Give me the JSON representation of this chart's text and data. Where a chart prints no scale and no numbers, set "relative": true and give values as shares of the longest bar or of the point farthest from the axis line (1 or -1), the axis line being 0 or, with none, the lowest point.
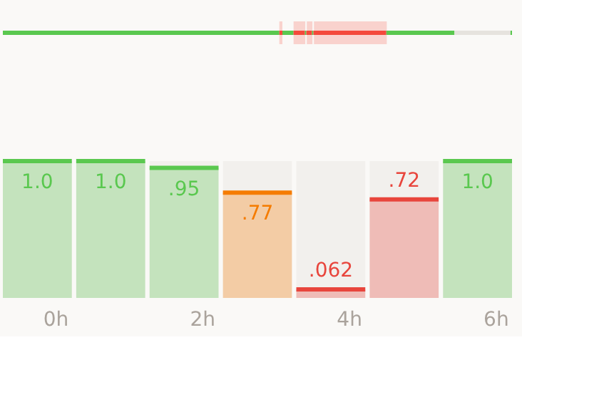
{
  "chart_data": [
    {
      "type": "bar",
      "orientation": "horizontal",
      "stacked": true,
      "relative": true,
      "categories": [
        null
      ],
      "series": [
        {
          "color": "#5ac84f",
          "values": [
            0.543
          ]
        },
        {
          "color": "#f44a3c",
          "values": [
            0.006
          ]
        },
        {
          "color": "#5ac84f",
          "values": [
            0.022
          ]
        },
        {
          "color": "#f44a3c",
          "values": [
            0.022
          ]
        },
        {
          "color": "#5ac84f",
          "values": [
            0.003
          ]
        },
        {
          "color": "#f44a3c",
          "values": [
            0.011
          ]
        },
        {
          "color": "#5ac84f",
          "values": [
            0.003
          ]
        },
        {
          "color": "#f44a3c",
          "values": [
            0.143
          ]
        },
        {
          "color": "#5ac84f",
          "values": [
            0.134
          ]
        },
        {
          "color": "#e6e3de",
          "values": [
            0.11
          ]
        },
        {
          "color": "#5ac84f",
          "values": [
            0.003
          ]
        }
      ],
      "bands": [
        {
          "axis": "x",
          "from": 0.543,
          "to": 0.549,
          "color": "#f44a3c"
        },
        {
          "axis": "x",
          "from": 0.571,
          "to": 0.594,
          "color": "#f44a3c"
        },
        {
          "axis": "x",
          "from": 0.597,
          "to": 0.608,
          "color": "#f44a3c"
        },
        {
          "axis": "x",
          "from": 0.611,
          "to": 0.754,
          "color": "#f44a3c"
        }
      ]
    },
    {
      "type": "bar",
      "categories": [
        "0h",
        null,
        "2h",
        null,
        "4h",
        null,
        "6h"
      ],
      "values": [
        1.0,
        1.0,
        0.95,
        0.77,
        0.062,
        0.72,
        1.0
      ],
      "colors": [
        "#5ac84f",
        "#5ac84f",
        "#5ac84f",
        "#f57c00",
        "#e8453c",
        "#e8453c",
        "#5ac84f"
      ],
      "value_labels": [
        "1.0",
        "1.0",
        ".95",
        ".77",
        ".062",
        ".72",
        "1.0"
      ],
      "tick_labels": "x",
      "grid": false
    }
  ]
}
